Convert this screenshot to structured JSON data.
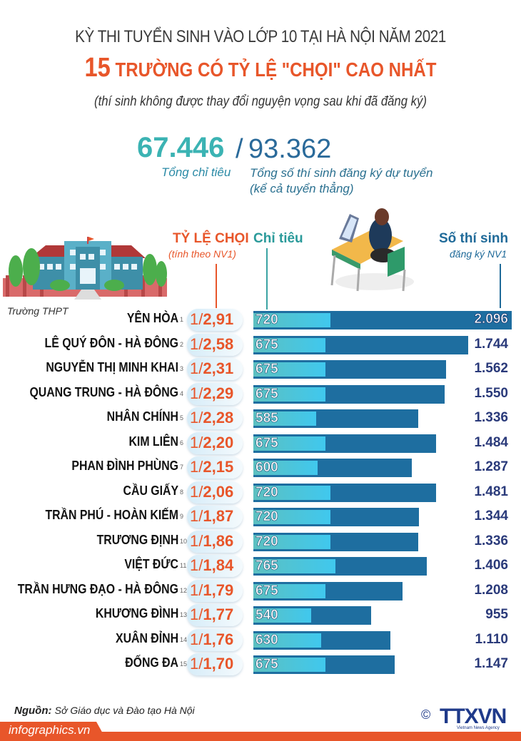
{
  "header": {
    "title_line1": "KỲ THI TUYỂN SINH VÀO LỚP 10 TẠI HÀ NỘI NĂM 2021",
    "title_number": "15",
    "title_line2": "TRƯỜNG CÓ TỶ LỆ \"CHỌI\" CAO NHẤT",
    "subtitle": "(thí sinh không được thay đổi nguyện vọng sau khi đã đăng ký)"
  },
  "totals": {
    "quota": "67.446",
    "slash": "/",
    "registered": "93.362",
    "quota_label": "Tổng chỉ tiêu",
    "registered_label_1": "Tổng số thí sinh đăng ký dự tuyển",
    "registered_label_2": "(kể cả tuyển thẳng)"
  },
  "columns": {
    "school": "Trường THPT",
    "ratio": "TỶ LỆ CHỌI",
    "ratio_sub": "(tính theo NV1)",
    "quota": "Chỉ tiêu",
    "registered": "Số thí sinh",
    "registered_sub": "đăng ký NV1"
  },
  "colors": {
    "accent_orange": "#e8562a",
    "bar_dark": "#1e6ea0",
    "bar_light": "#40c8ee",
    "teal": "#3bb3b3"
  },
  "chart_data": {
    "type": "bar",
    "title": "15 trường có tỷ lệ \"chọi\" cao nhất - Kỳ thi tuyển sinh vào lớp 10 tại Hà Nội năm 2021",
    "xlabel": "",
    "ylabel": "Trường THPT",
    "categories": [
      "YÊN HÒA",
      "LÊ QUÝ ĐÔN - HÀ ĐÔNG",
      "NGUYỄN THỊ MINH KHAI",
      "QUANG TRUNG - HÀ ĐÔNG",
      "NHÂN CHÍNH",
      "KIM LIÊN",
      "PHAN ĐÌNH PHÙNG",
      "CẦU GIẤY",
      "TRẦN PHÚ - HOÀN KIẾM",
      "TRƯƠNG ĐỊNH",
      "VIỆT ĐỨC",
      "TRẦN HƯNG ĐẠO - HÀ ĐÔNG",
      "KHƯƠNG ĐÌNH",
      "XUÂN ĐỈNH",
      "ĐỐNG ĐA"
    ],
    "series": [
      {
        "name": "Chỉ tiêu",
        "values": [
          720,
          675,
          675,
          675,
          585,
          675,
          600,
          720,
          720,
          720,
          765,
          675,
          540,
          630,
          675
        ]
      },
      {
        "name": "Số thí sinh đăng ký NV1",
        "values": [
          2096,
          1744,
          1562,
          1550,
          1336,
          1484,
          1287,
          1481,
          1344,
          1336,
          1406,
          1208,
          955,
          1110,
          1147
        ]
      },
      {
        "name": "Tỷ lệ chọi",
        "values": [
          2.91,
          2.58,
          2.31,
          2.29,
          2.28,
          2.2,
          2.15,
          2.06,
          1.87,
          1.86,
          1.84,
          1.79,
          1.77,
          1.76,
          1.7
        ]
      }
    ],
    "orientation": "horizontal",
    "legend_position": "top"
  },
  "rows": [
    {
      "rank": "1",
      "name": "YÊN HÒA",
      "ratio_one": "1/",
      "ratio": "2,91",
      "quota": "720",
      "registered": "2.096"
    },
    {
      "rank": "2",
      "name": "LÊ QUÝ ĐÔN - HÀ ĐÔNG",
      "ratio_one": "1/",
      "ratio": "2,58",
      "quota": "675",
      "registered": "1.744"
    },
    {
      "rank": "3",
      "name": "NGUYỄN THỊ MINH KHAI",
      "ratio_one": "1/",
      "ratio": "2,31",
      "quota": "675",
      "registered": "1.562"
    },
    {
      "rank": "4",
      "name": "QUANG TRUNG - HÀ ĐÔNG",
      "ratio_one": "1/",
      "ratio": "2,29",
      "quota": "675",
      "registered": "1.550"
    },
    {
      "rank": "5",
      "name": "NHÂN CHÍNH",
      "ratio_one": "1/",
      "ratio": "2,28",
      "quota": "585",
      "registered": "1.336"
    },
    {
      "rank": "6",
      "name": "KIM LIÊN",
      "ratio_one": "1/",
      "ratio": "2,20",
      "quota": "675",
      "registered": "1.484"
    },
    {
      "rank": "7",
      "name": "PHAN ĐÌNH PHÙNG",
      "ratio_one": "1/",
      "ratio": "2,15",
      "quota": "600",
      "registered": "1.287"
    },
    {
      "rank": "8",
      "name": "CẦU GIẤY",
      "ratio_one": "1/",
      "ratio": "2,06",
      "quota": "720",
      "registered": "1.481"
    },
    {
      "rank": "9",
      "name": "TRẦN PHÚ - HOÀN KIẾM",
      "ratio_one": "1/",
      "ratio": "1,87",
      "quota": "720",
      "registered": "1.344"
    },
    {
      "rank": "10",
      "name": "TRƯƠNG ĐỊNH",
      "ratio_one": "1/",
      "ratio": "1,86",
      "quota": "720",
      "registered": "1.336"
    },
    {
      "rank": "11",
      "name": "VIỆT ĐỨC",
      "ratio_one": "1/",
      "ratio": "1,84",
      "quota": "765",
      "registered": "1.406"
    },
    {
      "rank": "12",
      "name": "TRẦN HƯNG ĐẠO - HÀ ĐÔNG",
      "ratio_one": "1/",
      "ratio": "1,79",
      "quota": "675",
      "registered": "1.208"
    },
    {
      "rank": "13",
      "name": "KHƯƠNG ĐÌNH",
      "ratio_one": "1/",
      "ratio": "1,77",
      "quota": "540",
      "registered": "955"
    },
    {
      "rank": "14",
      "name": "XUÂN ĐỈNH",
      "ratio_one": "1/",
      "ratio": "1,76",
      "quota": "630",
      "registered": "1.110"
    },
    {
      "rank": "15",
      "name": "ĐỐNG ĐA",
      "ratio_one": "1/",
      "ratio": "1,70",
      "quota": "675",
      "registered": "1.147"
    }
  ],
  "footer": {
    "source_label": "Nguồn:",
    "source_text": "Sở Giáo dục và Đào tạo Hà Nội",
    "site": "infographics.vn",
    "copyright": "©",
    "agency_logo": "TTXVN",
    "agency_name": "Vietnam News Agency"
  }
}
